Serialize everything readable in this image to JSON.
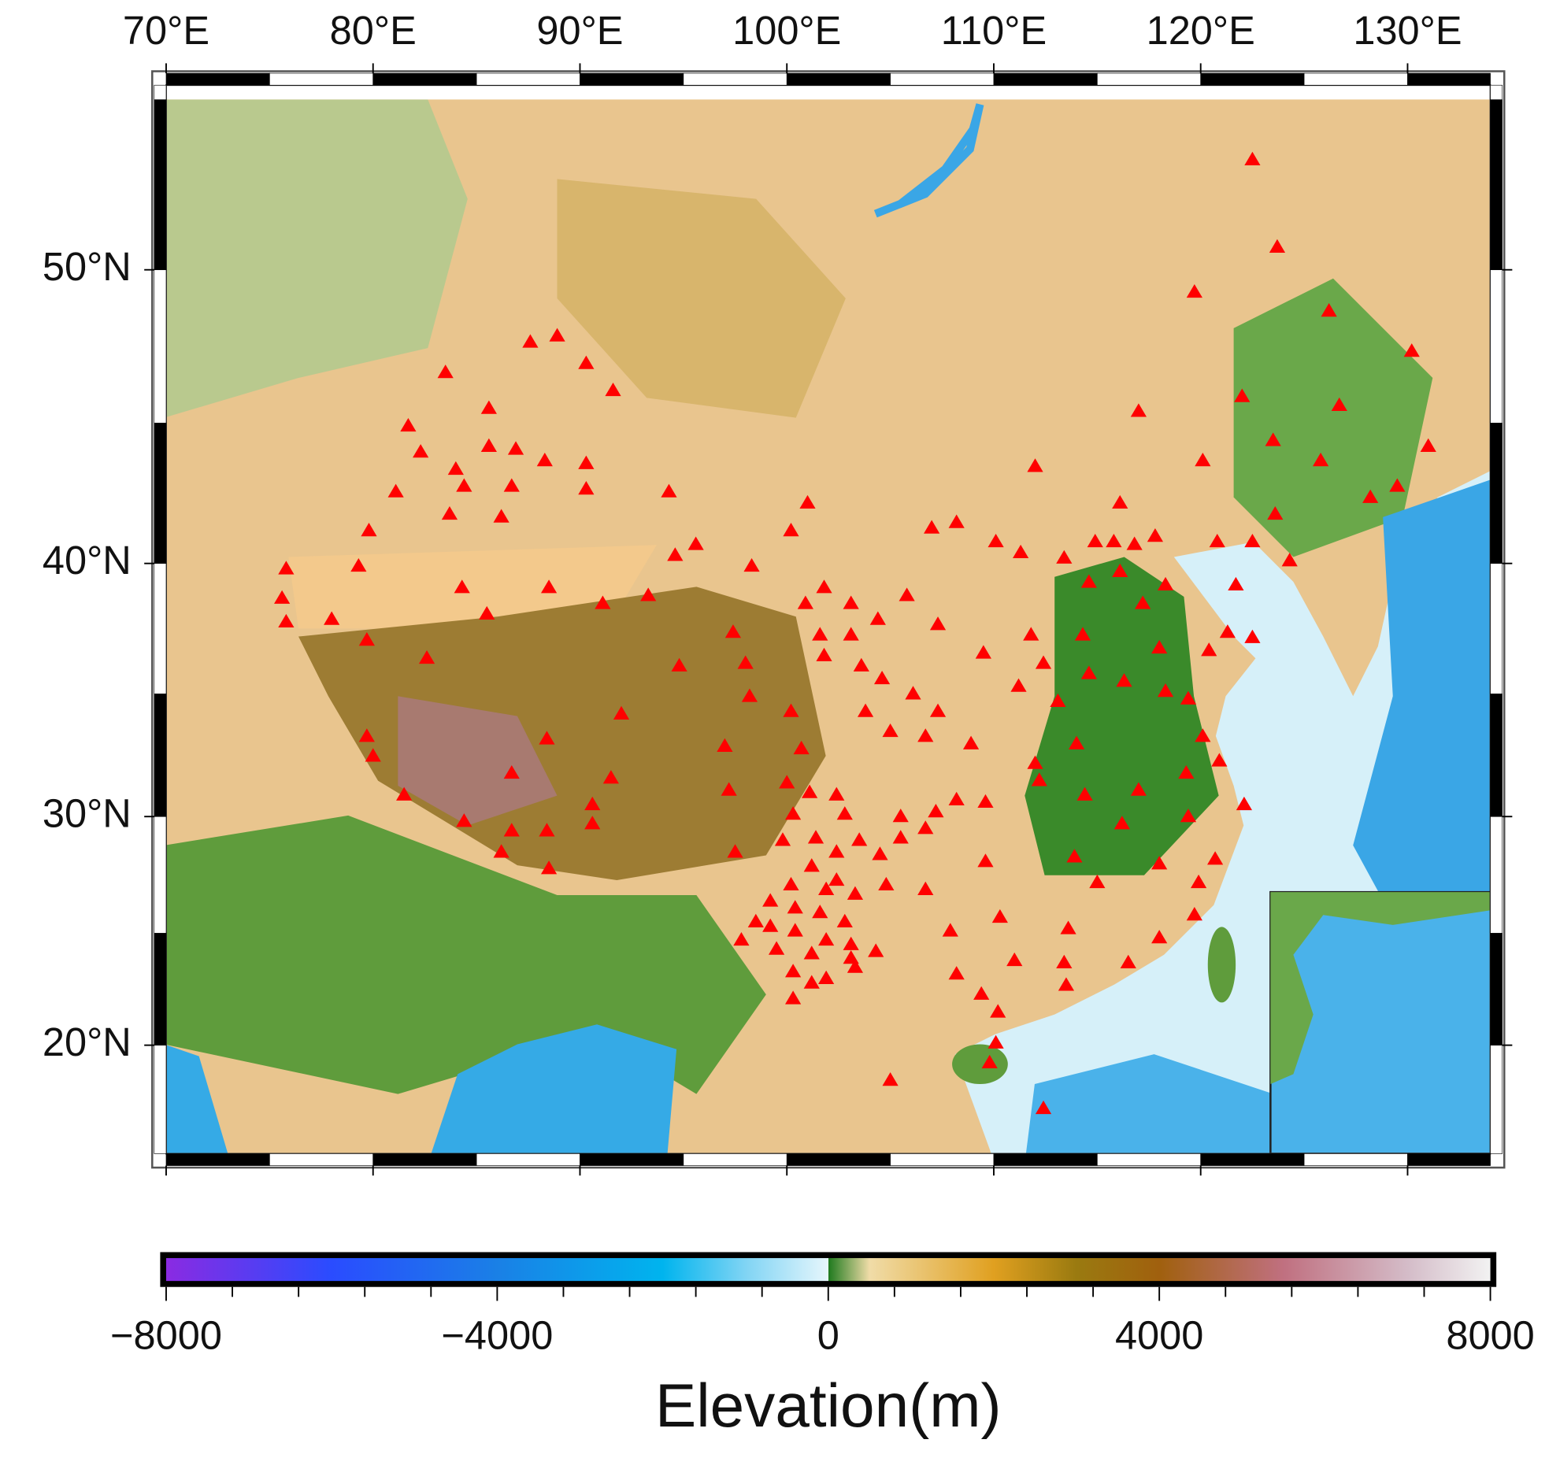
{
  "chart_data": [
    {
      "type": "scatter",
      "xlim": [
        70,
        134
      ],
      "ylim": [
        15,
        55.4
      ],
      "xticks": [
        {
          "value": 70,
          "label": "70°E"
        },
        {
          "value": 80,
          "label": "80°E"
        },
        {
          "value": 90,
          "label": "90°E"
        },
        {
          "value": 100,
          "label": "100°E"
        },
        {
          "value": 110,
          "label": "110°E"
        },
        {
          "value": 120,
          "label": "120°E"
        },
        {
          "value": 130,
          "label": "130°E"
        }
      ],
      "yticks": [
        {
          "value": 20,
          "label": "20°N"
        },
        {
          "value": 30,
          "label": "30°N"
        },
        {
          "value": 40,
          "label": "40°N"
        },
        {
          "value": 50,
          "label": "50°N"
        }
      ],
      "projection": "mercator",
      "series": [
        {
          "color": "#ff0000",
          "marker": "triangle",
          "x": [
            122.5,
            123.7,
            119.7,
            126.2,
            130.2,
            126.7,
            122.0,
            117.0,
            123.5,
            120.1,
            112.0,
            131.0,
            128.2,
            129.5,
            125.8,
            123.6,
            116.1,
            122.5,
            124.3,
            120.8,
            121.7,
            117.8,
            116.8,
            115.8,
            114.9,
            113.4,
            111.3,
            110.1,
            108.2,
            107.0,
            101.0,
            100.2,
            95.6,
            94.6,
            98.3,
            93.3,
            91.1,
            88.5,
            85.5,
            84.3,
            79.3,
            75.8,
            75.6,
            75.8,
            78.0,
            79.7,
            82.6,
            79.8,
            81.1,
            83.7,
            84.4,
            84.0,
            82.3,
            81.7,
            83.5,
            85.6,
            85.6,
            86.9,
            88.3,
            87.6,
            88.9,
            90.3,
            91.6,
            90.3,
            90.3,
            86.7,
            86.2,
            94.3,
            94.8,
            97.4,
            98.0,
            98.2,
            92.0,
            88.4,
            86.7,
            91.5,
            90.6,
            90.6,
            86.7,
            88.4,
            86.2,
            88.5,
            84.4,
            81.5,
            80.0,
            79.7,
            97.5,
            97.2,
            97.0,
            100.2,
            100.7,
            100.0,
            101.1,
            100.3,
            99.8,
            101.4,
            102.4,
            102.8,
            103.5,
            102.4,
            104.5,
            105.5,
            104.8,
            102.4,
            101.2,
            100.2,
            101.9,
            99.2,
            100.4,
            101.6,
            103.3,
            102.8,
            98.5,
            99.2,
            100.4,
            101.9,
            103.1,
            97.8,
            99.5,
            101.2,
            103.1,
            104.3,
            101.9,
            100.3,
            101.2,
            100.3,
            103.3,
            105.5,
            106.7,
            106.7,
            107.9,
            108.2,
            109.4,
            110.3,
            111.0,
            113.4,
            113.5,
            113.6,
            115.0,
            116.5,
            118.0,
            119.7,
            119.9,
            120.7,
            118.0,
            116.2,
            113.9,
            109.6,
            108.2,
            107.2,
            109.6,
            112.2,
            114.4,
            117.0,
            119.3,
            119.4,
            122.1,
            120.9,
            120.1,
            119.4,
            118.3,
            116.3,
            114.6,
            113.1,
            114.0,
            112.0,
            108.9,
            107.3,
            106.1,
            104.6,
            103.8,
            105.0,
            106.7,
            111.2,
            112.4,
            111.8,
            109.5,
            107.3,
            105.8,
            104.4,
            103.1,
            101.8,
            100.9,
            101.6,
            103.1,
            101.8,
            103.6,
            114.3,
            114.6,
            116.1,
            117.2,
            118.3,
            120.4,
            122.5,
            121.3,
            118.0,
            110.2,
            110.1,
            109.8,
            112.4,
            105.0
          ],
          "y": [
            53.3,
            50.7,
            49.3,
            48.7,
            47.4,
            45.6,
            45.9,
            45.4,
            44.4,
            43.7,
            43.5,
            44.2,
            42.4,
            42.8,
            43.7,
            41.8,
            42.2,
            40.8,
            40.1,
            40.8,
            39.2,
            41.0,
            40.7,
            40.8,
            40.8,
            40.2,
            40.4,
            40.8,
            41.5,
            41.3,
            42.2,
            41.2,
            40.7,
            40.3,
            39.9,
            38.8,
            38.5,
            39.1,
            38.1,
            39.1,
            39.9,
            39.8,
            38.7,
            37.8,
            37.9,
            37.1,
            36.4,
            41.2,
            42.6,
            41.8,
            42.8,
            43.4,
            44.0,
            44.9,
            46.7,
            45.5,
            44.2,
            44.1,
            43.7,
            47.7,
            47.9,
            47.0,
            46.1,
            43.6,
            42.7,
            42.8,
            41.7,
            42.6,
            36.1,
            37.4,
            36.2,
            34.9,
            34.2,
            33.2,
            31.8,
            31.6,
            30.5,
            29.7,
            29.4,
            29.4,
            28.5,
            27.8,
            29.8,
            30.9,
            32.5,
            33.3,
            28.5,
            31.1,
            32.9,
            34.3,
            32.8,
            31.4,
            31.0,
            30.1,
            29.0,
            29.1,
            30.9,
            30.1,
            29.0,
            28.5,
            28.4,
            29.1,
            27.1,
            27.3,
            27.9,
            27.1,
            26.9,
            26.4,
            26.1,
            25.9,
            26.7,
            25.5,
            25.5,
            25.3,
            25.1,
            24.7,
            24.5,
            24.7,
            24.3,
            24.1,
            23.9,
            24.2,
            23.0,
            23.3,
            22.8,
            22.1,
            23.5,
            30.0,
            29.5,
            26.9,
            25.1,
            23.2,
            22.3,
            25.7,
            23.8,
            23.7,
            22.7,
            25.2,
            27.2,
            23.7,
            24.8,
            25.8,
            27.2,
            28.2,
            28.0,
            29.7,
            28.3,
            28.1,
            30.7,
            30.2,
            30.6,
            31.5,
            30.9,
            31.1,
            31.8,
            30.0,
            30.5,
            32.3,
            33.3,
            34.8,
            35.1,
            35.5,
            35.8,
            34.7,
            33.0,
            32.2,
            33.0,
            34.3,
            35.0,
            35.6,
            34.3,
            33.5,
            33.3,
            35.3,
            36.2,
            37.3,
            36.6,
            37.7,
            38.8,
            37.9,
            38.5,
            39.1,
            38.5,
            37.3,
            37.3,
            36.5,
            36.1,
            37.3,
            39.3,
            39.7,
            38.5,
            39.2,
            36.7,
            37.2,
            37.4,
            36.8,
            21.5,
            20.1,
            19.2,
            17.1,
            18.4
          ]
        }
      ]
    },
    {
      "type": "colorbar",
      "title": "Elevation(m)",
      "xlim": [
        -8000,
        8000
      ],
      "xticks": [
        {
          "value": -8000,
          "label": "−8000"
        },
        {
          "value": -4000,
          "label": "−4000"
        },
        0,
        4000,
        8000
      ],
      "xminorticks": [
        -7200,
        -6400,
        -5600,
        -4800,
        -3200,
        -2400,
        -1600,
        -800,
        800,
        1600,
        2400,
        3200,
        4800,
        5600,
        6400,
        7200
      ],
      "stops": [
        {
          "value": -8000,
          "color": "#8a2be2"
        },
        {
          "value": -6000,
          "color": "#2a4cff"
        },
        {
          "value": -4000,
          "color": "#1a80e6"
        },
        {
          "value": -2000,
          "color": "#00b4ee"
        },
        {
          "value": -1000,
          "color": "#80d4f4"
        },
        {
          "value": 0,
          "color": "#e6f6fc"
        },
        {
          "value": 0,
          "color": "#1e7a1e"
        },
        {
          "value": 500,
          "color": "#f0dca8"
        },
        {
          "value": 2000,
          "color": "#e0a020"
        },
        {
          "value": 3000,
          "color": "#9a7a10"
        },
        {
          "value": 4000,
          "color": "#a0600e"
        },
        {
          "value": 5500,
          "color": "#c07080"
        },
        {
          "value": 7000,
          "color": "#d4bcc8"
        },
        {
          "value": 8000,
          "color": "#f2f2f2"
        }
      ]
    }
  ]
}
